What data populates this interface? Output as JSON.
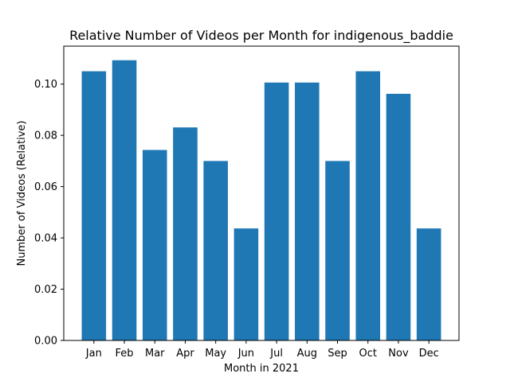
{
  "chart_data": {
    "type": "bar",
    "title": "Relative Number of Videos per Month for indigenous_baddie",
    "xlabel": "Month in 2021",
    "ylabel": "Number of Videos (Relative)",
    "categories": [
      "Jan",
      "Feb",
      "Mar",
      "Apr",
      "May",
      "Jun",
      "Jul",
      "Aug",
      "Sep",
      "Oct",
      "Nov",
      "Dec"
    ],
    "values": [
      0.105,
      0.1093,
      0.0743,
      0.0831,
      0.07,
      0.0437,
      0.1006,
      0.1006,
      0.07,
      0.105,
      0.0962,
      0.0437
    ],
    "ylim": [
      0,
      0.1148
    ],
    "yticks": [
      "0.00",
      "0.02",
      "0.04",
      "0.06",
      "0.08",
      "0.10"
    ],
    "bar_color": "#1f77b4",
    "grid": false,
    "legend": "none"
  }
}
